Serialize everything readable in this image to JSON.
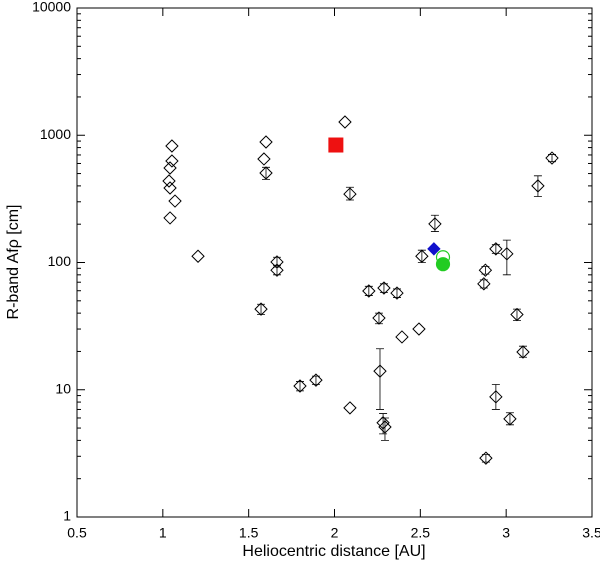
{
  "chart_data": {
    "type": "scatter",
    "x_label": "Heliocentric distance [AU]",
    "y_label": "R-band Afρ [cm]",
    "xlim": [
      0.5,
      3.5
    ],
    "xticks": [
      0.5,
      1,
      1.5,
      2,
      2.5,
      3,
      3.5
    ],
    "ylim": [
      1,
      10000
    ],
    "yticks": [
      1,
      10,
      100,
      1000,
      10000
    ],
    "ylog": true,
    "series": [
      {
        "marker": "diamond",
        "filled": false,
        "color": "#000000",
        "x": [
          1.053,
          1.053,
          1.042,
          1.036,
          1.042,
          1.071,
          1.042,
          1.205,
          1.601,
          1.589,
          1.601,
          1.665,
          1.665,
          1.572,
          2.061,
          2.09,
          1.799,
          1.892,
          2.09,
          2.2,
          2.288,
          2.364,
          2.259,
          2.393,
          2.492,
          2.265,
          2.283,
          2.294,
          2.585,
          2.509,
          2.879,
          2.87,
          2.94,
          3.004,
          2.94,
          3.022,
          3.063,
          3.098,
          2.882,
          3.185,
          3.267
        ],
        "values": [
          823,
          628,
          553,
          437,
          385,
          304,
          224,
          112,
          885,
          651,
          505,
          101,
          87,
          43,
          1271,
          345,
          10.7,
          11.9,
          7.2,
          59.7,
          63,
          57.5,
          36.6,
          26,
          30,
          14,
          5.5,
          5.1,
          201,
          112,
          87,
          68,
          128,
          117,
          8.8,
          5.9,
          39,
          19.8,
          2.9,
          400,
          662
        ],
        "yerr": [
          null,
          null,
          null,
          null,
          null,
          null,
          null,
          null,
          null,
          null,
          [
            450,
            560
          ],
          [
            92,
            110
          ],
          [
            80,
            95
          ],
          [
            39,
            47
          ],
          null,
          [
            310,
            390
          ],
          [
            9.8,
            11.6
          ],
          [
            11,
            12.8
          ],
          null,
          [
            55,
            65
          ],
          [
            58,
            68
          ],
          [
            53,
            62
          ],
          [
            33,
            40
          ],
          null,
          null,
          [
            7,
            21
          ],
          [
            4.5,
            6.5
          ],
          [
            4,
            6
          ],
          [
            175,
            235
          ],
          [
            100,
            125
          ],
          [
            81,
            93
          ],
          [
            63,
            73
          ],
          [
            118,
            138
          ],
          [
            80,
            150
          ],
          [
            7,
            11
          ],
          [
            5.3,
            6.6
          ],
          [
            35,
            43
          ],
          [
            18,
            22
          ],
          [
            2.7,
            3.1
          ],
          [
            330,
            480
          ],
          [
            620,
            705
          ]
        ]
      },
      {
        "marker": "square",
        "filled": true,
        "color": "#ee1111",
        "x": [
          2.008
        ],
        "values": [
          838
        ]
      },
      {
        "marker": "diamond",
        "filled": true,
        "color": "#1111cc",
        "x": [
          2.579
        ],
        "values": [
          128
        ]
      },
      {
        "marker": "circle",
        "filled": false,
        "color": "#22cc22",
        "x": [
          2.632
        ],
        "values": [
          110
        ]
      },
      {
        "marker": "circle",
        "filled": true,
        "color": "#22cc22",
        "x": [
          2.632
        ],
        "values": [
          97
        ]
      }
    ]
  }
}
